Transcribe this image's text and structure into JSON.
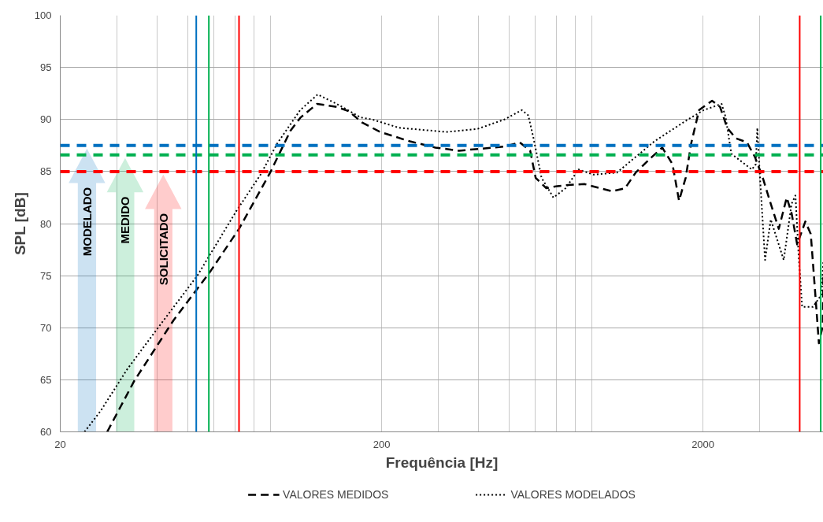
{
  "chart_data": {
    "type": "line",
    "xlabel": "Frequência [Hz]",
    "ylabel": "SPL [dB]",
    "log": "x",
    "xlim": [
      20,
      4740
    ],
    "ylim": [
      60,
      100
    ],
    "xticks": [
      20,
      {
        "value": 30,
        "label": null
      },
      {
        "value": 40,
        "label": null
      },
      {
        "value": 50,
        "label": null
      },
      {
        "value": 60,
        "label": null
      },
      {
        "value": 70,
        "label": null
      },
      {
        "value": 80,
        "label": null
      },
      {
        "value": 90,
        "label": null
      },
      200,
      {
        "value": 300,
        "label": null
      },
      {
        "value": 400,
        "label": null
      },
      {
        "value": 500,
        "label": null
      },
      {
        "value": 600,
        "label": null
      },
      {
        "value": 700,
        "label": null
      },
      {
        "value": 800,
        "label": null
      },
      {
        "value": 900,
        "label": null
      },
      2000,
      {
        "value": 3000,
        "label": null
      },
      {
        "value": 4000,
        "label": null
      }
    ],
    "yticks": [
      60,
      65,
      70,
      75,
      80,
      85,
      90,
      95,
      100
    ],
    "grid": true,
    "legend": "bottom",
    "marker": "none",
    "annotations": [
      "MODELADO",
      "MEDIDO",
      "SOLICITADO"
    ],
    "series": [
      {
        "name": "VALORES MEDIDOS",
        "color": "#000000",
        "line_style": "dashed",
        "x": [
          28,
          34,
          45,
          58.6,
          72,
          90,
          104,
          112,
          126,
          145,
          158,
          174,
          198,
          245,
          294,
          348,
          410,
          482,
          538,
          580,
          603,
          651,
          704,
          760,
          855,
          1044,
          1145,
          1235,
          1387,
          1494,
          1608,
          1685,
          1767,
          1838,
          1945,
          2135,
          2261,
          2378,
          2530,
          2741,
          2902,
          3070,
          3251,
          3443,
          3645,
          3774,
          3928,
          4164,
          4330,
          4486,
          4590,
          4720,
          4740
        ],
        "values": [
          60,
          64.9,
          70.7,
          75.4,
          79.5,
          84.9,
          88.9,
          90.2,
          91.5,
          91.2,
          90.8,
          89.7,
          88.8,
          87.9,
          87.3,
          87.0,
          87.2,
          87.4,
          87.8,
          87.0,
          84.4,
          83.4,
          83.6,
          83.7,
          83.8,
          83.1,
          83.4,
          84.9,
          86.4,
          87.3,
          85.7,
          82.2,
          84.4,
          87.7,
          90.9,
          91.8,
          91.2,
          89.2,
          88.2,
          87.8,
          86.4,
          84.4,
          81.9,
          79.5,
          82.5,
          81.0,
          78.0,
          80.2,
          79.0,
          72.7,
          68.5,
          70.2,
          75
        ]
      },
      {
        "name": "VALORES MODELADOS",
        "color": "#000000",
        "line_style": "dotted",
        "x": [
          23.8,
          26.7,
          32.3,
          40.3,
          53.4,
          70.6,
          84,
          94.7,
          111.6,
          126.5,
          145,
          172,
          187,
          227,
          318,
          398,
          482,
          546,
          572,
          594,
          629,
          685,
          748,
          820,
          912,
          1080,
          1412,
          1795,
          2011,
          2286,
          2354,
          2451,
          2839,
          2920,
          2953,
          3003,
          3121,
          3251,
          3567,
          3774,
          3880,
          3970,
          4070,
          4400,
          4680,
          4740
        ],
        "values": [
          60,
          62.0,
          66.0,
          70.0,
          75.0,
          81.2,
          84.7,
          87.7,
          90.9,
          92.4,
          91.5,
          90.2,
          90.0,
          89.2,
          88.8,
          89.1,
          90.0,
          90.9,
          90.4,
          88.2,
          84.4,
          82.5,
          83.4,
          85.2,
          84.7,
          84.9,
          87.9,
          90.0,
          90.9,
          91.5,
          90.2,
          86.7,
          85.2,
          85.7,
          89.2,
          84.9,
          76.5,
          80.4,
          76.5,
          81.9,
          82.7,
          76.9,
          72.0,
          72.0,
          73.2,
          76.5
        ]
      }
    ],
    "ref_lines": [
      {
        "axis": "y",
        "value": 87.5,
        "color": "#0070c0",
        "line_style": "dashed"
      },
      {
        "axis": "y",
        "value": 86.6,
        "color": "#00b050",
        "line_style": "dashed"
      },
      {
        "axis": "y",
        "value": 85,
        "color": "#ff0000",
        "line_style": "dashed"
      },
      {
        "axis": "x",
        "value": 53,
        "color": "#0070c0",
        "line_style": "solid"
      },
      {
        "axis": "x",
        "value": 58,
        "color": "#00b050",
        "line_style": "solid"
      },
      {
        "axis": "x",
        "value": 72,
        "color": "#ff0000",
        "line_style": "solid"
      },
      {
        "axis": "x",
        "value": 4000,
        "color": "#ff0000",
        "line_style": "solid"
      },
      {
        "axis": "x",
        "value": 4650,
        "color": "#00b050",
        "line_style": "solid"
      }
    ]
  }
}
